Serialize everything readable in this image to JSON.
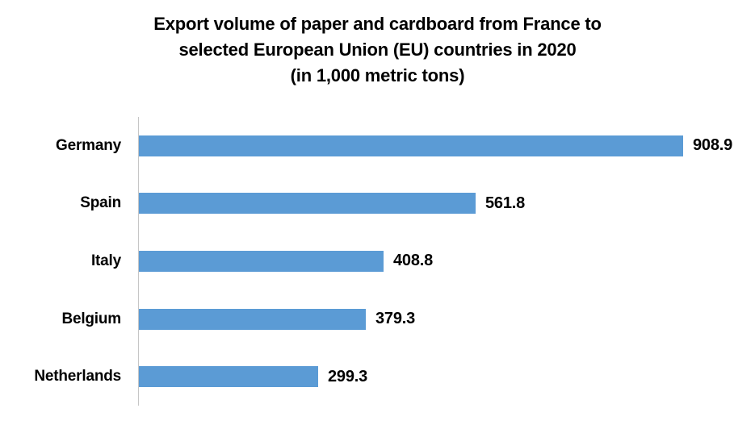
{
  "title": {
    "lines": [
      "Export volume of paper and cardboard from France to",
      "selected European Union (EU) countries in 2020",
      "(in 1,000 metric tons)"
    ]
  },
  "chart_data": {
    "type": "bar",
    "orientation": "horizontal",
    "title": "Export volume of paper and cardboard from France to selected European Union (EU) countries in 2020 (in 1,000 metric tons)",
    "categories": [
      "Germany",
      "Spain",
      "Italy",
      "Belgium",
      "Netherlands"
    ],
    "values": [
      908.9,
      561.8,
      408.8,
      379.3,
      299.3
    ],
    "value_labels": [
      "908.9",
      "561.8",
      "408.8",
      "379.3",
      "299.3"
    ],
    "xlabel": "",
    "ylabel": "",
    "xlim": [
      0,
      1000
    ],
    "grid": false,
    "legend": false,
    "bar_color": "#5b9bd5",
    "axis_line_color": "#c6c6c6",
    "label_color": "#000000"
  }
}
